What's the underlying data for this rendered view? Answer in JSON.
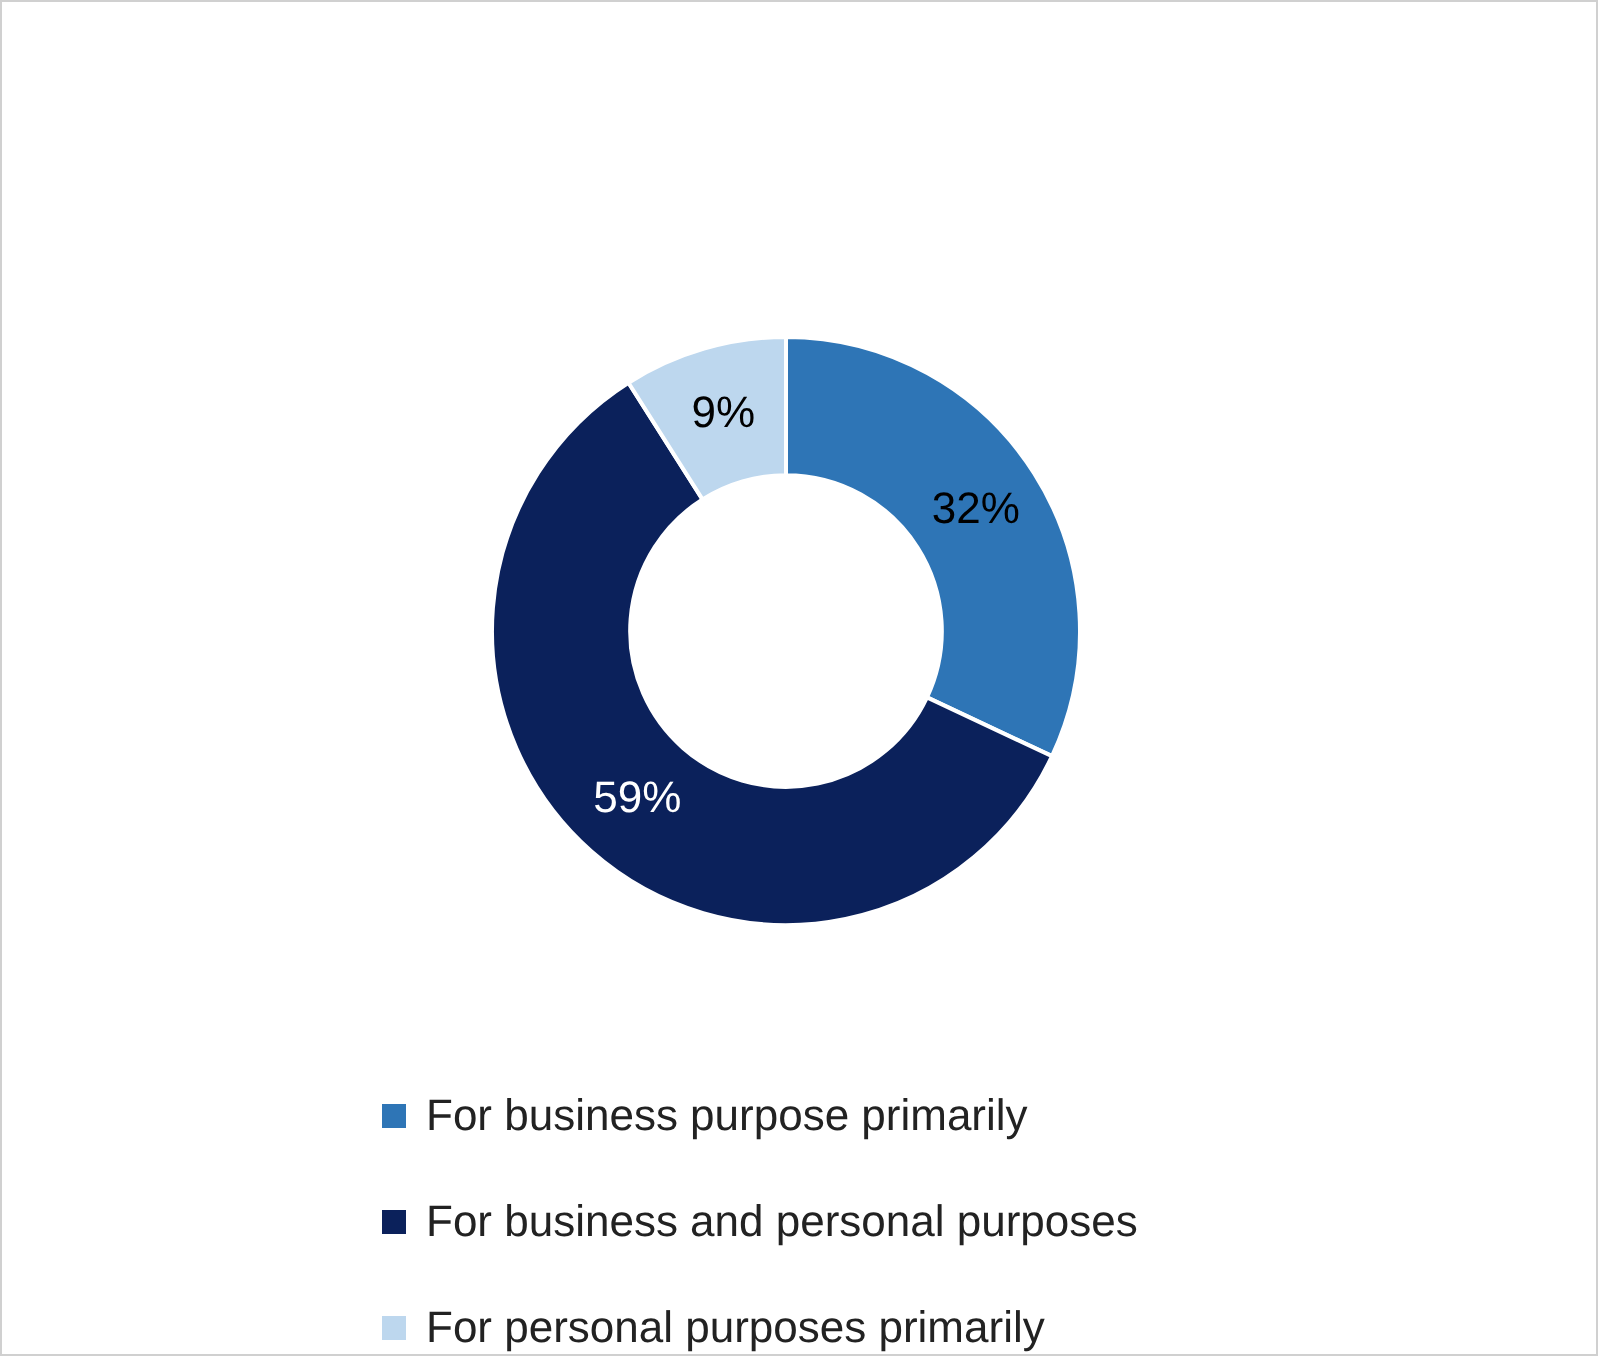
{
  "chart_data": {
    "type": "donut",
    "categories": [
      "For business purpose primarily",
      "For business and personal purposes",
      "For personal purposes primarily"
    ],
    "values": [
      32,
      59,
      9
    ],
    "colors": [
      "#2e75b6",
      "#0b215b",
      "#bdd7ee"
    ],
    "value_labels": [
      "32%",
      "59%",
      "9%"
    ],
    "legend": "bottom"
  }
}
